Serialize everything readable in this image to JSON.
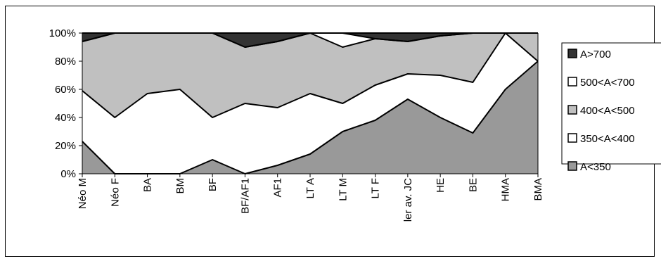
{
  "chart_data": {
    "type": "area",
    "stacked": true,
    "percent": true,
    "categories": [
      "Néo M",
      "Néo F",
      "BA",
      "BM",
      "BF",
      "BF/AF1",
      "AF1",
      "LT A",
      "LT M",
      "LT F",
      "ler av. JC",
      "HE",
      "BE",
      "HMA",
      "BMA"
    ],
    "y_tick_labels": [
      "0%",
      "20%",
      "40%",
      "60%",
      "80%",
      "100%"
    ],
    "ylim": [
      0,
      100
    ],
    "grid": false,
    "legend_position": "right",
    "series": [
      {
        "name": "A<350",
        "color": "#999999",
        "values": [
          23,
          0,
          0,
          0,
          10,
          0,
          6,
          14,
          30,
          38,
          53,
          40,
          29,
          60,
          80
        ]
      },
      {
        "name": "350<A<400",
        "color": "#ffffff",
        "values": [
          36,
          40,
          57,
          60,
          30,
          50,
          41,
          43,
          20,
          25,
          18,
          30,
          36,
          40,
          0
        ]
      },
      {
        "name": "400<A<500",
        "color": "#c0c0c0",
        "values": [
          35,
          60,
          43,
          40,
          60,
          40,
          47,
          43,
          40,
          33,
          23,
          28,
          35,
          0,
          20
        ]
      },
      {
        "name": "500<A<700",
        "color": "#ffffff",
        "values": [
          0,
          0,
          0,
          0,
          0,
          0,
          0,
          0,
          10,
          0,
          0,
          0,
          0,
          0,
          0
        ]
      },
      {
        "name": "A>700",
        "color": "#333333",
        "values": [
          6,
          0,
          0,
          0,
          0,
          10,
          6,
          0,
          0,
          4,
          6,
          2,
          0,
          0,
          0
        ]
      }
    ],
    "legend_order": [
      "A>700",
      "500<A<700",
      "400<A<500",
      "350<A<400",
      "A<350"
    ]
  }
}
